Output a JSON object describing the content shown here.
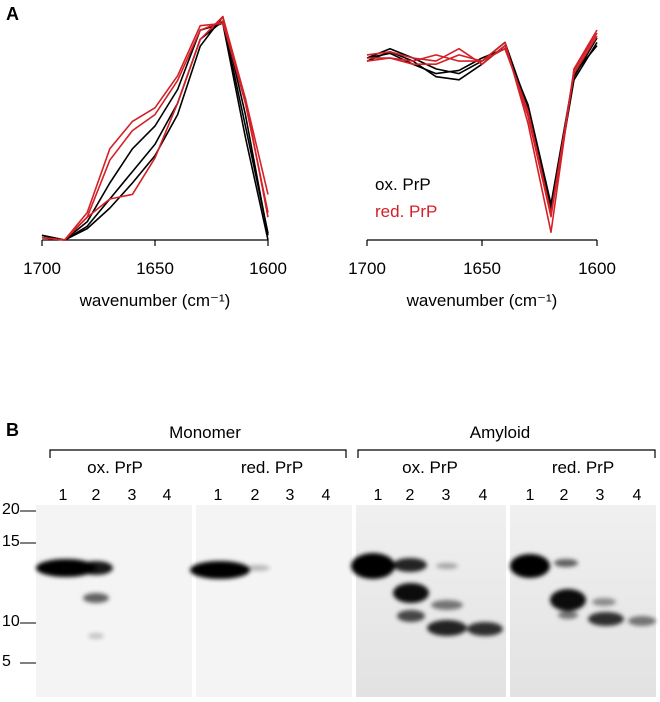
{
  "panel_labels": [
    "A",
    "B"
  ],
  "chart_data": [
    {
      "type": "line",
      "x": [
        1700,
        1690,
        1680,
        1670,
        1660,
        1650,
        1640,
        1630,
        1620,
        1610,
        1600
      ],
      "xlim": [
        1700,
        1600
      ],
      "xticks": [
        1700,
        1650,
        1600
      ],
      "xlabel": "wavenumber (cm⁻¹)",
      "ylim": [
        0,
        1
      ],
      "series": [
        {
          "color": "#000000",
          "values": [
            0.02,
            0,
            0.05,
            0.14,
            0.25,
            0.37,
            0.55,
            0.85,
            0.98,
            0.55,
            0.02
          ]
        },
        {
          "color": "#000000",
          "values": [
            0.02,
            0,
            0.06,
            0.18,
            0.3,
            0.42,
            0.6,
            0.88,
            0.96,
            0.5,
            0.03
          ]
        },
        {
          "color": "#000000",
          "values": [
            0.02,
            0,
            0.08,
            0.25,
            0.4,
            0.5,
            0.66,
            0.92,
            0.95,
            0.45,
            0
          ]
        },
        {
          "color": "#d42027",
          "values": [
            0.01,
            0,
            0.1,
            0.18,
            0.2,
            0.36,
            0.6,
            0.88,
            0.98,
            0.62,
            0.1
          ]
        },
        {
          "color": "#d42027",
          "values": [
            0.01,
            0,
            0.1,
            0.35,
            0.48,
            0.55,
            0.7,
            0.92,
            0.96,
            0.6,
            0.12
          ]
        },
        {
          "color": "#d42027",
          "values": [
            0.01,
            0,
            0.12,
            0.4,
            0.52,
            0.58,
            0.72,
            0.94,
            0.95,
            0.62,
            0.2
          ]
        }
      ]
    },
    {
      "type": "line",
      "x": [
        1700,
        1690,
        1680,
        1670,
        1660,
        1650,
        1640,
        1630,
        1620,
        1610,
        1600
      ],
      "xlim": [
        1700,
        1600
      ],
      "xticks": [
        1700,
        1650,
        1600
      ],
      "xlabel": "wavenumber (cm⁻¹)",
      "ylim": [
        -1.05,
        0.3
      ],
      "legend": [
        {
          "name": "ox. PrP",
          "color": "#000000"
        },
        {
          "name": "red. PrP",
          "color": "#d42027"
        }
      ],
      "series": [
        {
          "color": "#000000",
          "values": [
            0.12,
            0.18,
            0.12,
            0.05,
            0.02,
            0.1,
            0.22,
            -0.2,
            -0.85,
            0,
            0.25
          ]
        },
        {
          "color": "#000000",
          "values": [
            0.1,
            0.16,
            0.1,
            0,
            -0.02,
            0.08,
            0.2,
            -0.25,
            -0.88,
            -0.02,
            0.22
          ]
        },
        {
          "color": "#000000",
          "values": [
            0.12,
            0.15,
            0.08,
            0.02,
            0.04,
            0.12,
            0.18,
            -0.18,
            -0.82,
            0.02,
            0.2
          ]
        },
        {
          "color": "#d42027",
          "values": [
            0.12,
            0.12,
            0.1,
            0.14,
            0.1,
            0.1,
            0.22,
            -0.3,
            -1,
            0.05,
            0.3
          ]
        },
        {
          "color": "#d42027",
          "values": [
            0.14,
            0.16,
            0.12,
            0.1,
            0.18,
            0.08,
            0.2,
            -0.25,
            -0.9,
            0.04,
            0.28
          ]
        },
        {
          "color": "#d42027",
          "values": [
            0.1,
            0.12,
            0.08,
            0.08,
            0.14,
            0.1,
            0.18,
            -0.22,
            -0.88,
            0.02,
            0.26
          ]
        }
      ]
    }
  ],
  "gel": {
    "groups": [
      {
        "title": "Monomer",
        "subgroups": [
          {
            "title": "ox. PrP",
            "lanes": [
              "1",
              "2",
              "3",
              "4"
            ]
          },
          {
            "title": "red. PrP",
            "lanes": [
              "1",
              "2",
              "3",
              "4"
            ]
          }
        ]
      },
      {
        "title": "Amyloid",
        "subgroups": [
          {
            "title": "ox. PrP",
            "lanes": [
              "1",
              "2",
              "3",
              "4"
            ]
          },
          {
            "title": "red. PrP",
            "lanes": [
              "1",
              "2",
              "3",
              "4"
            ]
          }
        ]
      }
    ],
    "markers": [
      "20",
      "15",
      "10",
      "5"
    ]
  }
}
